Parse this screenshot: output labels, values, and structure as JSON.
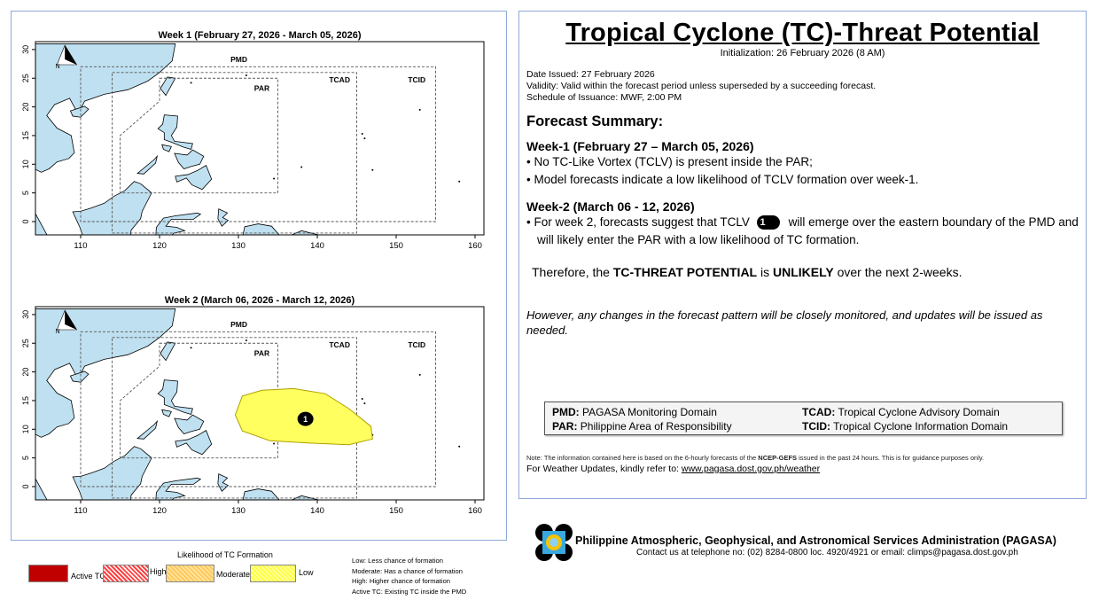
{
  "maps": [
    {
      "title": "Week 1 (February 27, 2026 - March 05, 2026)",
      "forecast_area": false
    },
    {
      "title": "Week 2 (March 06, 2026 - March 12, 2026)",
      "forecast_area": true,
      "tclv_label": "1",
      "tclv_likelihood": "Low"
    }
  ],
  "domain_labels": {
    "pmd": "PMD",
    "par": "PAR",
    "tcad": "TCAD",
    "tcid": "TCID"
  },
  "north_label": "N",
  "x_ticks": [
    "110",
    "120",
    "130",
    "140",
    "150",
    "160"
  ],
  "y_ticks": [
    "0",
    "5",
    "10",
    "15",
    "20",
    "25",
    "30"
  ],
  "tc_legend": {
    "title": "Likelihood of TC Formation",
    "items": [
      {
        "label": "Active TC",
        "color": "#c00000"
      },
      {
        "label": "High",
        "color": "#ff5050"
      },
      {
        "label": "Moderate",
        "color": "#ffd070"
      },
      {
        "label": "Low",
        "color": "#ffff60"
      }
    ],
    "explanations": [
      "Low: Less chance of formation",
      "Moderate: Has a chance of formation",
      "High: Higher chance of formation",
      "Active TC: Existing TC inside the PMD"
    ]
  },
  "bulletin": {
    "title": "Tropical Cyclone (TC)-Threat Potential",
    "initialization": "Initialization: 26  February 2026 (8 AM)",
    "date_issued": "Date Issued: 27 February 2026",
    "validity": "Validity: Valid within the forecast period unless superseded by a succeeding forecast.",
    "schedule": "Schedule of Issuance: MWF, 2:00 PM",
    "summary_heading": "Forecast Summary:",
    "week1_heading": "Week-1 (February 27 – March 05, 2026)",
    "week1_bullets": [
      "• No TC-Like Vortex (TCLV) is present inside the PAR;",
      "• Model forecasts indicate a low likelihood of TCLV formation over week-1."
    ],
    "week2_heading": "Week-2 (March 06 - 12, 2026)",
    "week2_pre": "• For week 2, forecasts suggest that TCLV",
    "week2_badge": "1",
    "week2_post": "will emerge over the eastern boundary of the PMD and will likely enter the PAR with a low likelihood of TC formation.",
    "therefore_pre": "Therefore, the ",
    "therefore_b1": "TC-THREAT POTENTIAL",
    "therefore_mid": " is ",
    "therefore_b2": "UNLIKELY",
    "therefore_post": " over the next 2-weeks.",
    "however": "However, any changes in the forecast pattern will be closely monitored, and updates will be issued as needed.",
    "domains": [
      {
        "abbr": "PMD:",
        "name": "PAGASA Monitoring Domain"
      },
      {
        "abbr": "TCAD:",
        "name": "Tropical Cyclone Advisory Domain"
      },
      {
        "abbr": "PAR:",
        "name": "Philippine Area of Responsibility"
      },
      {
        "abbr": "TCID:",
        "name": "Tropical Cyclone Information Domain"
      }
    ],
    "note_pre": "Note: The information contained here is based on the 6-hourly forecasts of the ",
    "note_bold": "NCEP-GEFS",
    "note_post": " issued in the past 24 hours. This is for guidance purposes only.",
    "updates_label": "For Weather Updates, kindly refer to: ",
    "updates_link": "www.pagasa.dost.gov.ph/weather"
  },
  "org": {
    "name": "Philippine Atmospheric, Geophysical, and Astronomical Services Administration (PAGASA)",
    "contact": "Contact us at telephone no: (02) 8284-0800 loc. 4920/4921 or email: climps@pagasa.dost.gov.ph"
  }
}
